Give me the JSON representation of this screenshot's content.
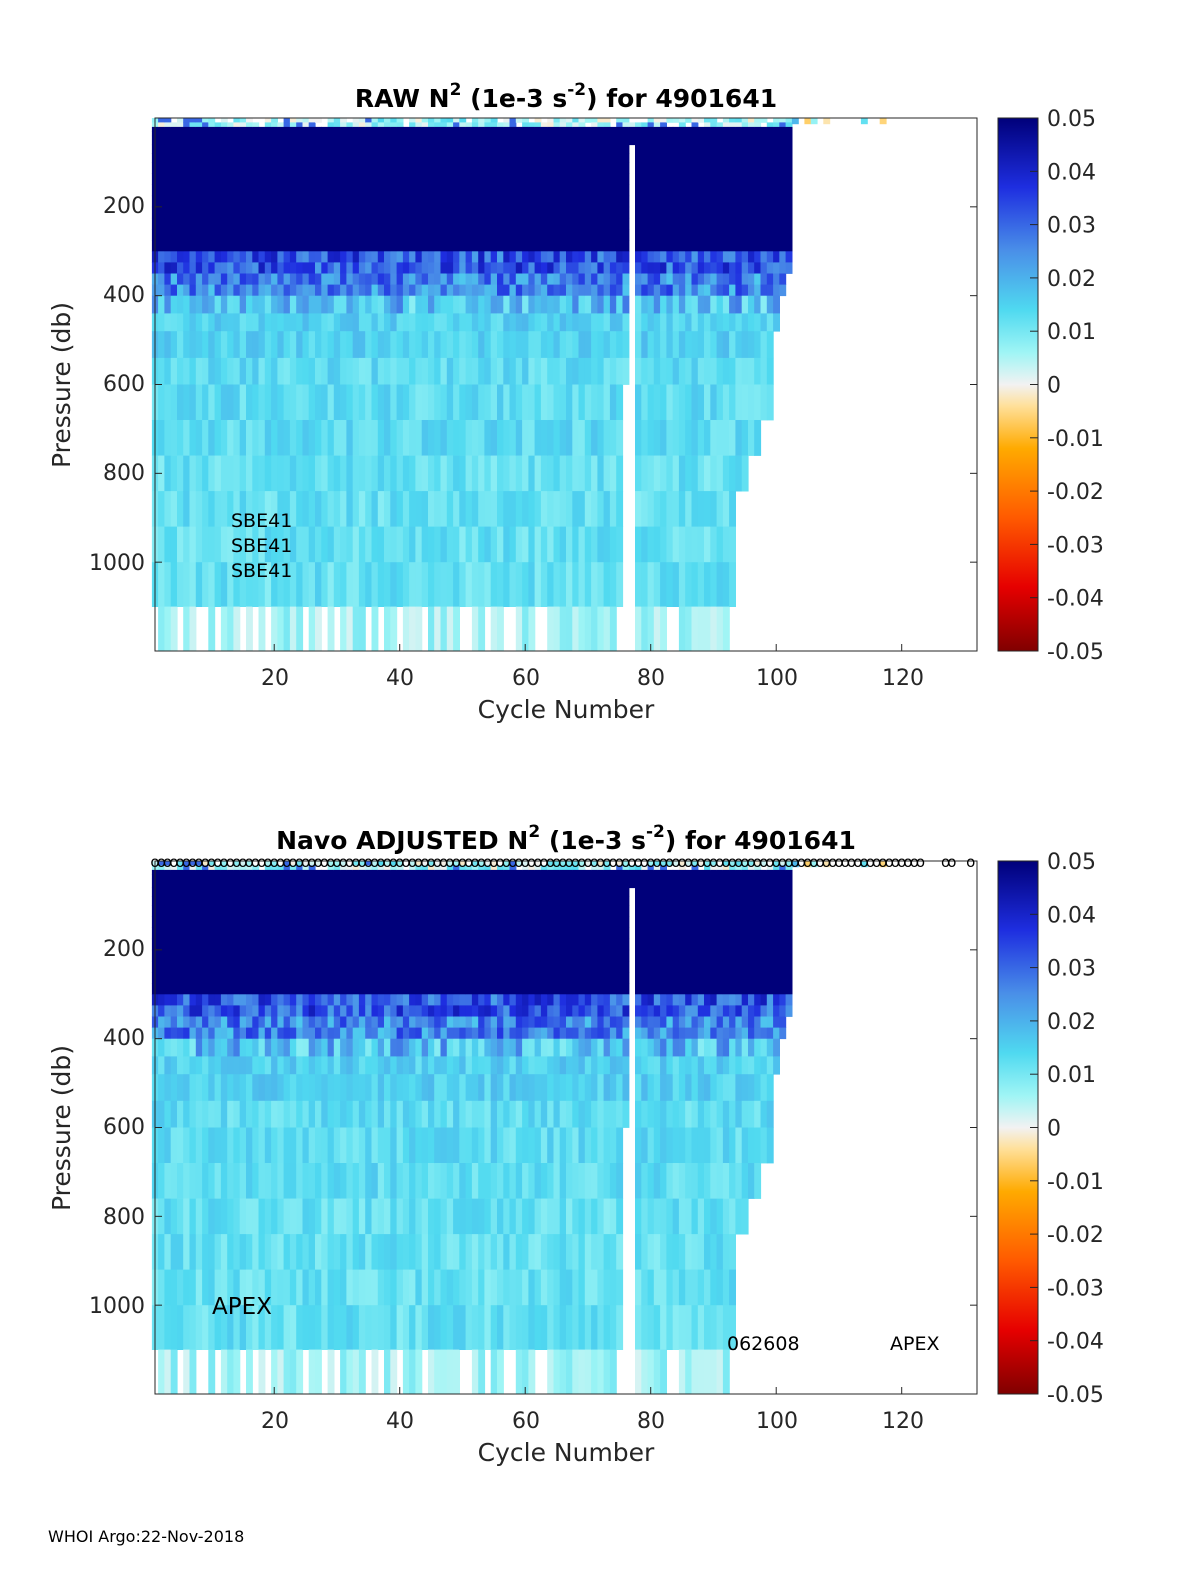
{
  "chart_data": [
    {
      "type": "heatmap",
      "title_parts": {
        "pre": "RAW N",
        "sup1": "2",
        "mid": " (1e-3 s",
        "sup2": "-2",
        "post": ") for 4901641"
      },
      "xlabel": "Cycle Number",
      "ylabel": "Pressure (db)",
      "xlim": [
        1,
        132
      ],
      "ylim": [
        1200,
        0
      ],
      "xticks": [
        "20",
        "40",
        "60",
        "80",
        "100",
        "120"
      ],
      "yticks": [
        "200",
        "400",
        "600",
        "800",
        "1000"
      ],
      "colorbar": {
        "range": [
          -0.05,
          0.05
        ],
        "ticks": [
          "0.05",
          "0.04",
          "0.03",
          "0.02",
          "0.01",
          "0",
          "-0.01",
          "-0.02",
          "-0.03",
          "-0.04",
          "-0.05"
        ]
      },
      "annotations": [
        "SBE41",
        "SBE41",
        "SBE41"
      ],
      "last_cycle": 102,
      "surface_extent_cycle": 122,
      "max_depth_profile": [
        {
          "cycle": 1,
          "pressure": 1200
        },
        {
          "cycle": 60,
          "pressure": 1200
        },
        {
          "cycle": 73,
          "pressure": 1200
        },
        {
          "cycle": 90,
          "pressure": 1200
        },
        {
          "cycle": 93,
          "pressure": 1100
        },
        {
          "cycle": 94,
          "pressure": 820
        },
        {
          "cycle": 96,
          "pressure": 740
        },
        {
          "cycle": 98,
          "pressure": 670
        },
        {
          "cycle": 100,
          "pressure": 450
        },
        {
          "cycle": 101,
          "pressure": 400
        },
        {
          "cycle": 102,
          "pressure": 340
        }
      ],
      "gap_cycles": [
        77
      ]
    },
    {
      "type": "heatmap",
      "title_parts": {
        "pre": "Navo  ADJUSTED N",
        "sup1": "2",
        "mid": " (1e-3 s",
        "sup2": "-2",
        "post": ") for 4901641"
      },
      "xlabel": "Cycle Number",
      "ylabel": "Pressure (db)",
      "xlim": [
        1,
        132
      ],
      "ylim": [
        1200,
        0
      ],
      "xticks": [
        "20",
        "40",
        "60",
        "80",
        "100",
        "120"
      ],
      "yticks": [
        "200",
        "400",
        "600",
        "800",
        "1000"
      ],
      "colorbar": {
        "range": [
          -0.05,
          0.05
        ],
        "ticks": [
          "0.05",
          "0.04",
          "0.03",
          "0.02",
          "0.01",
          "0",
          "-0.01",
          "-0.02",
          "-0.03",
          "-0.04",
          "-0.05"
        ]
      },
      "annotations": [
        "APEX",
        "062608",
        "APEX"
      ],
      "marker_symbol": "o",
      "marker_cycles_extra": [
        123,
        127,
        128,
        131
      ],
      "last_cycle": 102,
      "surface_extent_cycle": 122,
      "gap_cycles": [
        77
      ]
    }
  ],
  "footer": "WHOI Argo:22-Nov-2018"
}
